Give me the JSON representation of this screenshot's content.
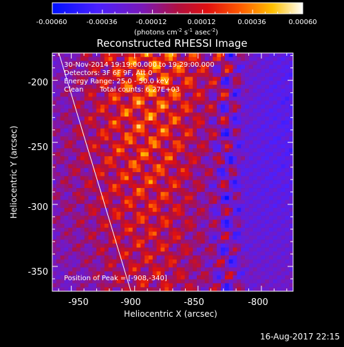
{
  "colorbar": {
    "ticks": [
      "-0.00060",
      "-0.00036",
      "-0.00012",
      "0.00012",
      "0.00036",
      "0.00060"
    ],
    "unit_main": "(photons cm",
    "unit_exp1": "-2",
    "unit_s": " s",
    "unit_exp2": "-1",
    "unit_asec": " asec",
    "unit_exp3": "-2",
    "unit_close": ")"
  },
  "plot": {
    "title": "Reconstructed RHESSI Image",
    "xlabel": "Heliocentric X (arcsec)",
    "ylabel": "Heliocentric Y (arcsec)"
  },
  "annotations": {
    "time_range": "30-Nov-2014 19:19:00.000 to 19:29:00.000",
    "detectors": "Detectors: 3F 6F 9F, Att 0",
    "energy": "Energy Range: 25.0 - 50.0 keV",
    "clean": "Clean",
    "total_counts": "Total counts: 6.27E+03",
    "peak": "Position of Peak = [-908,-340]"
  },
  "footer": {
    "timestamp": "16-Aug-2017 22:15"
  },
  "chart_data": {
    "type": "heatmap",
    "title": "Reconstructed RHESSI Image",
    "xlabel": "Heliocentric X (arcsec)",
    "ylabel": "Heliocentric Y (arcsec)",
    "xlim": [
      -965,
      -775
    ],
    "ylim": [
      -370,
      -178
    ],
    "x_ticks": [
      -950,
      -900,
      -850,
      -800
    ],
    "x_tick_labels": [
      "-950",
      "-900",
      "-850",
      "-800"
    ],
    "y_ticks": [
      -200,
      -250,
      -300,
      -350
    ],
    "y_tick_labels": [
      "-200",
      "-250",
      "-300",
      "-350"
    ],
    "colorbar_range": [
      -0.0006,
      0.0006
    ],
    "colormap": "blue-purple-red-orange-yellow-white",
    "peak": [
      -908,
      -340
    ],
    "limb_line": [
      [
        -961,
        -174
      ],
      [
        -903,
        -370
      ]
    ]
  }
}
